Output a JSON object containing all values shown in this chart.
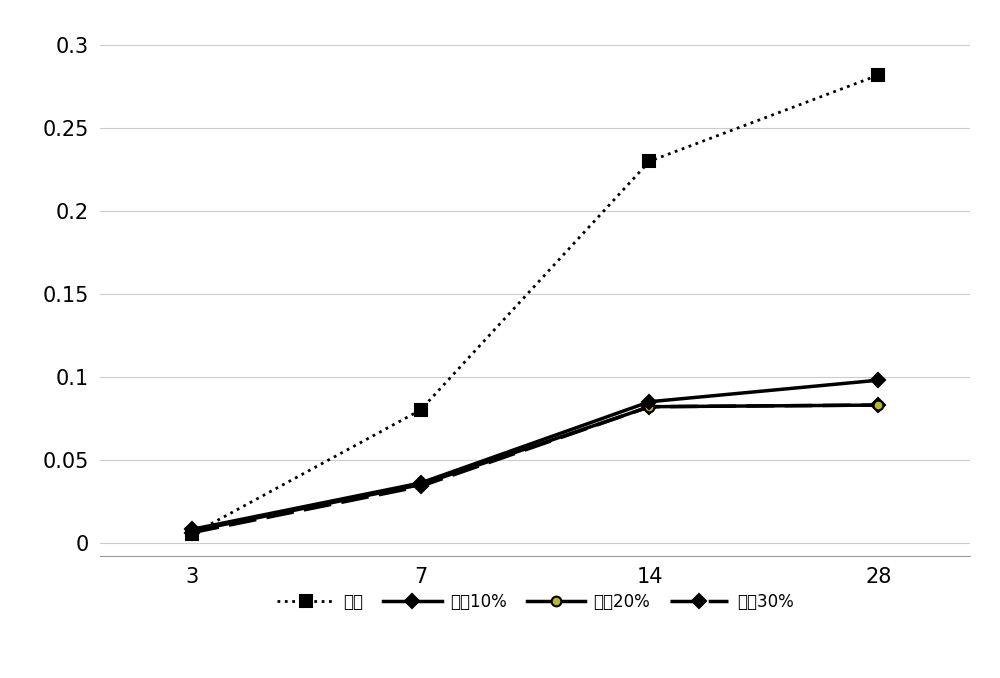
{
  "x_positions": [
    0,
    1,
    2,
    3
  ],
  "x_labels": [
    "3",
    "7",
    "14",
    "28"
  ],
  "series": [
    {
      "label": "基准",
      "values": [
        0.005,
        0.08,
        0.23,
        0.282
      ],
      "linestyle": "dotted",
      "color": "#000000",
      "marker": "s",
      "linewidth": 2.0,
      "markersize": 8,
      "markerfacecolor": "#000000",
      "zorder": 5,
      "dashes": null
    },
    {
      "label": "掺量10%",
      "values": [
        0.008,
        0.036,
        0.085,
        0.098
      ],
      "linestyle": "solid",
      "color": "#000000",
      "marker": "D",
      "linewidth": 2.5,
      "markersize": 7,
      "markerfacecolor": "#000000",
      "zorder": 4,
      "dashes": null
    },
    {
      "label": "掺量20%",
      "values": [
        0.007,
        0.035,
        0.082,
        0.083
      ],
      "linestyle": "solid",
      "color": "#000000",
      "marker": "o",
      "linewidth": 2.5,
      "markersize": 7,
      "markerfacecolor": "#b8b830",
      "zorder": 3,
      "dashes": null
    },
    {
      "label": "掺量30%",
      "values": [
        0.006,
        0.034,
        0.082,
        0.083
      ],
      "linestyle": "dashed",
      "color": "#000000",
      "marker": "D",
      "linewidth": 2.5,
      "markersize": 7,
      "markerfacecolor": "#000000",
      "zorder": 2,
      "dashes": [
        8,
        3
      ]
    }
  ],
  "ylim": [
    -0.008,
    0.315
  ],
  "yticks": [
    0,
    0.05,
    0.1,
    0.15,
    0.2,
    0.25,
    0.3
  ],
  "ytick_labels": [
    "0",
    "0.05",
    "0.1",
    "0.15",
    "0.2",
    "0.25",
    "0.3"
  ],
  "background_color": "#ffffff",
  "grid_color": "#cccccc",
  "legend_fontsize": 12,
  "tick_fontsize": 15
}
